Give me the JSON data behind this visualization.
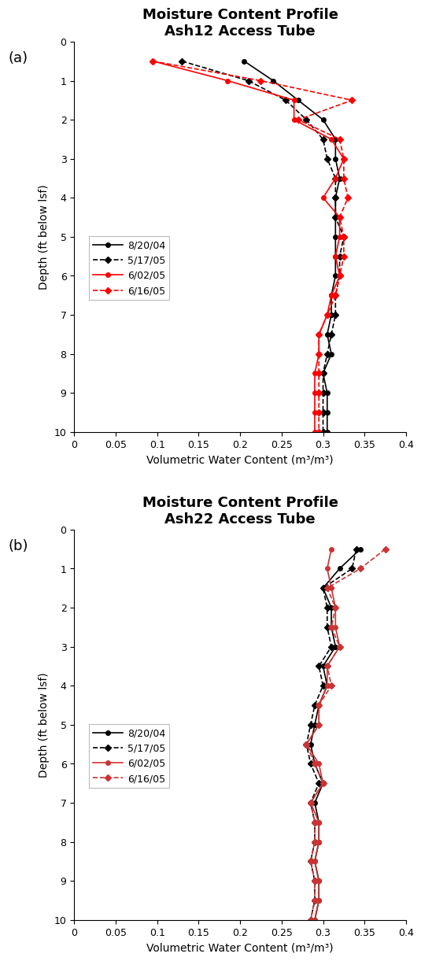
{
  "title_a": "Moisture Content Profile\nAsh12 Access Tube",
  "title_b": "Moisture Content Profile\nAsh22 Access Tube",
  "xlabel": "Volumetric Water Content (m³/m³)",
  "ylabel": "Depth (ft below lsf)",
  "label_a": "(a)",
  "label_b": "(b)",
  "xlim": [
    0,
    0.4
  ],
  "ylim": [
    0,
    10
  ],
  "xticks": [
    0,
    0.05,
    0.1,
    0.15,
    0.2,
    0.25,
    0.3,
    0.35,
    0.4
  ],
  "yticks": [
    0,
    1,
    2,
    3,
    4,
    5,
    6,
    7,
    8,
    9,
    10
  ],
  "legend_labels": [
    "8/20/04",
    "5/17/05",
    "6/02/05",
    "6/16/05"
  ],
  "background": "#ffffff",
  "title_fontsize": 13,
  "label_fontsize": 10,
  "tick_fontsize": 9,
  "legend_fontsize": 9,
  "ash12_depths": [
    0.5,
    1.0,
    1.5,
    2.0,
    2.5,
    3.0,
    3.5,
    4.0,
    4.5,
    5.0,
    5.5,
    6.0,
    6.5,
    7.0,
    7.5,
    8.0,
    8.5,
    9.0,
    9.5,
    10.0
  ],
  "ash12_s1": [
    0.205,
    0.24,
    0.27,
    0.3,
    0.315,
    0.315,
    0.32,
    0.315,
    0.315,
    0.315,
    0.315,
    0.315,
    0.31,
    0.31,
    0.305,
    0.31,
    0.3,
    0.305,
    0.305,
    0.305
  ],
  "ash12_s2": [
    0.13,
    0.21,
    0.255,
    0.28,
    0.3,
    0.305,
    0.315,
    0.315,
    0.315,
    0.325,
    0.32,
    0.32,
    0.315,
    0.315,
    0.31,
    0.305,
    0.3,
    0.3,
    0.3,
    0.3
  ],
  "ash12_s3": [
    0.095,
    0.185,
    0.265,
    0.265,
    0.31,
    0.325,
    0.315,
    0.3,
    0.32,
    0.32,
    0.315,
    0.32,
    0.31,
    0.305,
    0.295,
    0.295,
    0.29,
    0.29,
    0.29,
    0.29
  ],
  "ash12_s4": [
    0.095,
    0.225,
    0.335,
    0.27,
    0.32,
    0.325,
    0.325,
    0.33,
    0.32,
    0.325,
    0.325,
    0.32,
    0.315,
    0.305,
    0.295,
    0.295,
    0.295,
    0.295,
    0.295,
    0.295
  ],
  "ash22_depths": [
    0.5,
    1.0,
    1.5,
    2.0,
    2.5,
    3.0,
    3.5,
    4.0,
    4.5,
    5.0,
    5.5,
    6.0,
    6.5,
    7.0,
    7.5,
    8.0,
    8.5,
    9.0,
    9.5,
    10.0
  ],
  "ash22_s1": [
    0.345,
    0.32,
    0.3,
    0.31,
    0.31,
    0.315,
    0.3,
    0.305,
    0.295,
    0.29,
    0.285,
    0.29,
    0.3,
    0.29,
    0.295,
    0.295,
    0.29,
    0.295,
    0.295,
    0.29
  ],
  "ash22_s2": [
    0.34,
    0.335,
    0.3,
    0.305,
    0.305,
    0.31,
    0.295,
    0.3,
    0.29,
    0.285,
    0.28,
    0.285,
    0.295,
    0.285,
    0.29,
    0.29,
    0.285,
    0.29,
    0.29,
    0.285
  ],
  "ash22_s3": [
    0.31,
    0.305,
    0.31,
    0.315,
    0.315,
    0.32,
    0.305,
    0.305,
    0.295,
    0.295,
    0.28,
    0.295,
    0.3,
    0.285,
    0.295,
    0.295,
    0.29,
    0.295,
    0.295,
    0.29
  ],
  "ash22_s4": [
    0.375,
    0.345,
    0.305,
    0.315,
    0.31,
    0.32,
    0.305,
    0.31,
    0.295,
    0.295,
    0.28,
    0.29,
    0.3,
    0.285,
    0.29,
    0.29,
    0.285,
    0.29,
    0.29,
    0.285
  ]
}
